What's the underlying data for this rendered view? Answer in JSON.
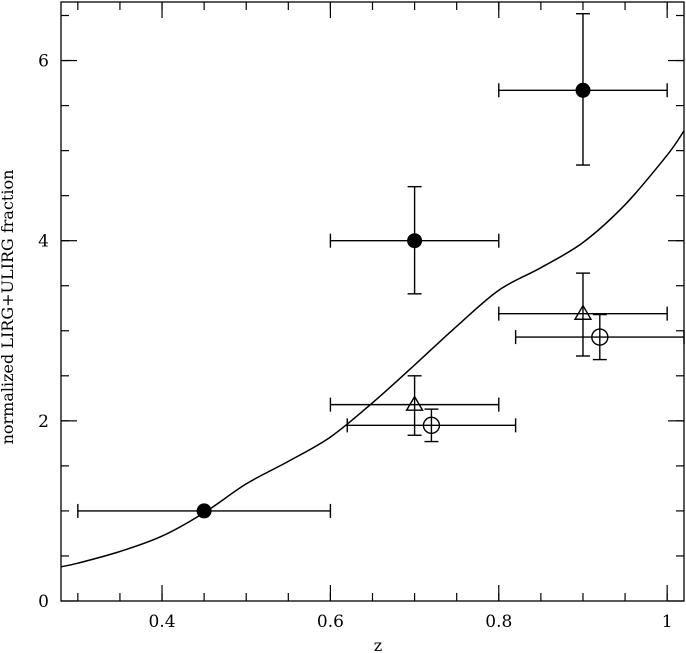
{
  "chart_data": {
    "type": "scatter",
    "title": "",
    "xlabel": "z",
    "ylabel": "normalized LIRG+ULIRG fraction",
    "xlim": [
      0.28,
      1.02
    ],
    "ylim": [
      0,
      6.65
    ],
    "x_ticks": [
      0.4,
      0.6,
      0.8,
      1
    ],
    "x_tick_labels": [
      "0.4",
      "0.6",
      "0.8",
      "1"
    ],
    "y_ticks": [
      0,
      2,
      4,
      6
    ],
    "y_tick_labels": [
      "0",
      "2",
      "4",
      "6"
    ],
    "grid": false,
    "legend": "none",
    "series": [
      {
        "marker": "filled-circle",
        "points": [
          {
            "x": 0.45,
            "y": 1.0,
            "xerr": [
              0.15,
              0.15
            ],
            "yerr": [
              0,
              0
            ]
          },
          {
            "x": 0.7,
            "y": 4.0,
            "xerr": [
              0.1,
              0.1
            ],
            "yerr": [
              0.59,
              0.6
            ]
          },
          {
            "x": 0.9,
            "y": 5.67,
            "xerr": [
              0.1,
              0.1
            ],
            "yerr": [
              0.83,
              0.85
            ]
          }
        ]
      },
      {
        "marker": "open-triangle",
        "points": [
          {
            "x": 0.7,
            "y": 2.18,
            "xerr": [
              0.1,
              0.1
            ],
            "yerr": [
              0.34,
              0.32
            ]
          },
          {
            "x": 0.9,
            "y": 3.19,
            "xerr": [
              0.1,
              0.1
            ],
            "yerr": [
              0.47,
              0.45
            ]
          }
        ]
      },
      {
        "marker": "open-circle",
        "points": [
          {
            "x": 0.72,
            "y": 1.95,
            "xerr": [
              0.1,
              0.1
            ],
            "yerr": [
              0.18,
              0.18
            ]
          },
          {
            "x": 0.92,
            "y": 2.93,
            "xerr": [
              0.1,
              0.1
            ],
            "yerr": [
              0.25,
              0.25
            ]
          }
        ]
      },
      {
        "marker": "line",
        "x": [
          0.28,
          0.3,
          0.35,
          0.4,
          0.45,
          0.5,
          0.55,
          0.6,
          0.65,
          0.7,
          0.75,
          0.8,
          0.85,
          0.9,
          0.95,
          1.0,
          1.02
        ],
        "y": [
          0.38,
          0.42,
          0.55,
          0.72,
          0.98,
          1.3,
          1.55,
          1.82,
          2.2,
          2.62,
          3.05,
          3.45,
          3.7,
          3.98,
          4.4,
          4.95,
          5.22
        ]
      }
    ]
  }
}
